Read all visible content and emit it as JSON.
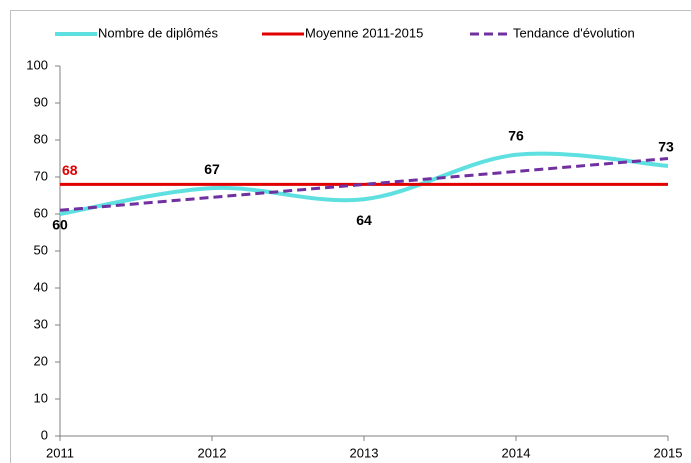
{
  "chart_data": {
    "type": "line",
    "x": [
      2011,
      2012,
      2013,
      2014,
      2015
    ],
    "series": [
      {
        "name": "Nombre de diplômés",
        "color": "#5fe0e0",
        "values": [
          60,
          67,
          64,
          76,
          73
        ],
        "smooth": true
      },
      {
        "name": "Moyenne 2011-2015",
        "color": "#e00000",
        "values": [
          68,
          68,
          68,
          68,
          68
        ]
      },
      {
        "name": "Tendance d'évolution",
        "color": "#7030a0",
        "values": [
          61,
          64.5,
          68,
          71.5,
          75
        ],
        "dashed": true
      }
    ],
    "xlim": [
      2011,
      2015
    ],
    "xticks": [
      2011,
      2012,
      2013,
      2014,
      2015
    ],
    "ylim": [
      0,
      100
    ],
    "yticks": [
      0,
      10,
      20,
      30,
      40,
      50,
      60,
      70,
      80,
      90,
      100
    ],
    "legend": "top",
    "grid": false
  }
}
